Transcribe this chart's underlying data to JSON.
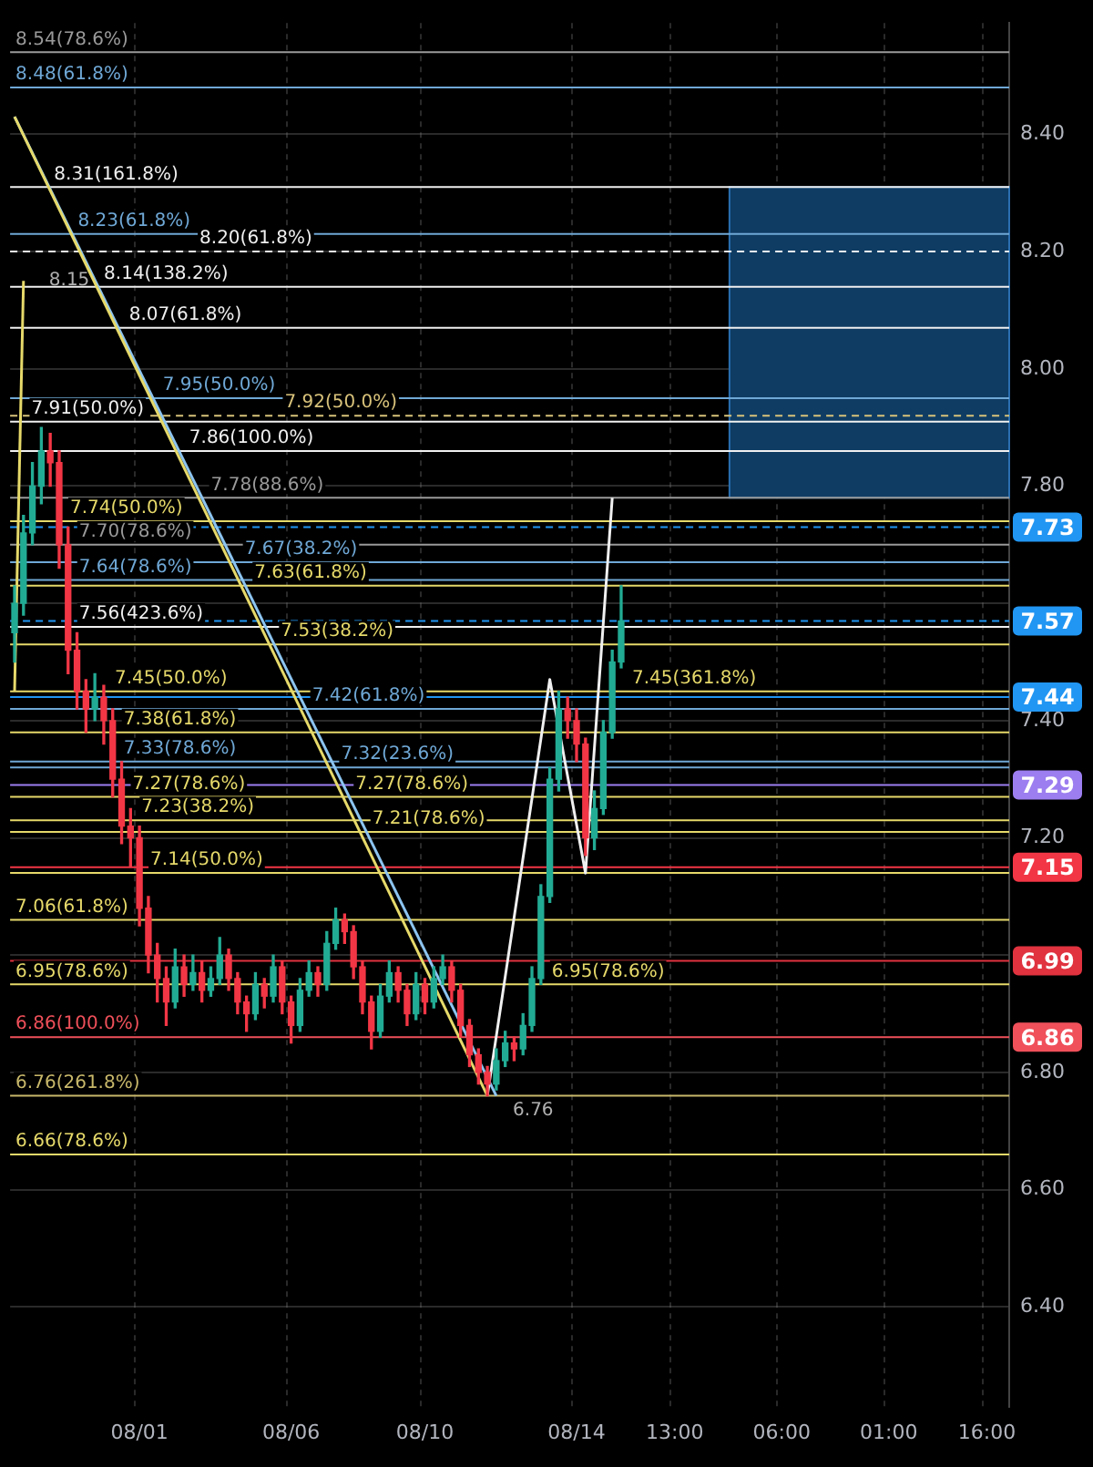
{
  "chart_data": {
    "type": "candlestick",
    "categories": [
      null,
      null,
      null,
      null,
      null,
      null,
      null,
      null,
      null,
      null,
      null,
      null,
      null,
      null,
      "08/01",
      null,
      null,
      null,
      null,
      null,
      null,
      null,
      null,
      null,
      null,
      null,
      null,
      null,
      null,
      null,
      null,
      "08/06",
      null,
      null,
      null,
      null,
      null,
      null,
      null,
      null,
      null,
      null,
      null,
      null,
      null,
      null,
      "08/10",
      null,
      null,
      null,
      null,
      null,
      null,
      null,
      null,
      null,
      null,
      null,
      null,
      null,
      null,
      null,
      null,
      "08/14",
      null,
      null,
      null,
      null,
      null,
      null,
      null,
      null,
      null,
      null,
      "13:00",
      null,
      null,
      null,
      null,
      null,
      null,
      null,
      null,
      null,
      null,
      null,
      "06:00",
      null,
      null,
      null,
      null,
      null,
      null,
      null,
      null,
      null,
      null,
      null,
      "01:00",
      null,
      null,
      null,
      null,
      null,
      null,
      null,
      null,
      null,
      null,
      "16:00",
      null,
      null
    ],
    "ohlc": [
      [
        7.55,
        7.63,
        7.5,
        7.6
      ],
      [
        7.6,
        7.75,
        7.58,
        7.72
      ],
      [
        7.72,
        7.84,
        7.7,
        7.8
      ],
      [
        7.8,
        7.9,
        7.77,
        7.86
      ],
      [
        7.86,
        7.89,
        7.8,
        7.84
      ],
      [
        7.84,
        7.86,
        7.66,
        7.7
      ],
      [
        7.7,
        7.73,
        7.48,
        7.52
      ],
      [
        7.52,
        7.55,
        7.42,
        7.45
      ],
      [
        7.45,
        7.47,
        7.38,
        7.42
      ],
      [
        7.42,
        7.48,
        7.4,
        7.44
      ],
      [
        7.44,
        7.46,
        7.36,
        7.4
      ],
      [
        7.4,
        7.42,
        7.27,
        7.3
      ],
      [
        7.3,
        7.33,
        7.19,
        7.22
      ],
      [
        7.22,
        7.25,
        7.15,
        7.2
      ],
      [
        7.2,
        7.22,
        7.05,
        7.08
      ],
      [
        7.08,
        7.1,
        6.97,
        7.0
      ],
      [
        7.0,
        7.02,
        6.92,
        6.96
      ],
      [
        6.96,
        6.98,
        6.88,
        6.92
      ],
      [
        6.92,
        7.01,
        6.91,
        6.98
      ],
      [
        6.98,
        7.0,
        6.93,
        6.95
      ],
      [
        6.95,
        7.0,
        6.94,
        6.97
      ],
      [
        6.97,
        6.99,
        6.92,
        6.94
      ],
      [
        6.94,
        6.98,
        6.93,
        6.96
      ],
      [
        6.96,
        7.03,
        6.95,
        7.0
      ],
      [
        7.0,
        7.01,
        6.94,
        6.96
      ],
      [
        6.96,
        6.97,
        6.9,
        6.92
      ],
      [
        6.92,
        6.93,
        6.87,
        6.9
      ],
      [
        6.9,
        6.97,
        6.89,
        6.95
      ],
      [
        6.95,
        6.96,
        6.91,
        6.93
      ],
      [
        6.93,
        7.0,
        6.92,
        6.98
      ],
      [
        6.98,
        6.99,
        6.9,
        6.92
      ],
      [
        6.92,
        6.93,
        6.85,
        6.88
      ],
      [
        6.88,
        6.96,
        6.87,
        6.94
      ],
      [
        6.94,
        6.99,
        6.93,
        6.97
      ],
      [
        6.97,
        6.98,
        6.93,
        6.95
      ],
      [
        6.95,
        7.04,
        6.94,
        7.02
      ],
      [
        7.02,
        7.08,
        7.01,
        7.06
      ],
      [
        7.06,
        7.07,
        7.02,
        7.04
      ],
      [
        7.04,
        7.05,
        6.96,
        6.98
      ],
      [
        6.98,
        6.99,
        6.9,
        6.92
      ],
      [
        6.92,
        6.93,
        6.84,
        6.87
      ],
      [
        6.87,
        6.95,
        6.86,
        6.93
      ],
      [
        6.93,
        6.99,
        6.92,
        6.97
      ],
      [
        6.97,
        6.98,
        6.92,
        6.94
      ],
      [
        6.94,
        6.95,
        6.88,
        6.9
      ],
      [
        6.9,
        6.97,
        6.89,
        6.95
      ],
      [
        6.95,
        6.96,
        6.9,
        6.92
      ],
      [
        6.92,
        6.98,
        6.91,
        6.96
      ],
      [
        6.96,
        7.0,
        6.95,
        6.98
      ],
      [
        6.98,
        6.99,
        6.92,
        6.94
      ],
      [
        6.94,
        6.95,
        6.86,
        6.88
      ],
      [
        6.88,
        6.89,
        6.81,
        6.83
      ],
      [
        6.83,
        6.84,
        6.78,
        6.8
      ],
      [
        6.8,
        6.81,
        6.76,
        6.78
      ],
      [
        6.78,
        6.84,
        6.77,
        6.82
      ],
      [
        6.82,
        6.87,
        6.81,
        6.85
      ],
      [
        6.85,
        6.86,
        6.82,
        6.84
      ],
      [
        6.84,
        6.9,
        6.83,
        6.88
      ],
      [
        6.88,
        6.98,
        6.87,
        6.96
      ],
      [
        6.96,
        7.12,
        6.95,
        7.1
      ],
      [
        7.1,
        7.32,
        7.09,
        7.3
      ],
      [
        7.3,
        7.45,
        7.28,
        7.42
      ],
      [
        7.42,
        7.44,
        7.37,
        7.4
      ],
      [
        7.4,
        7.42,
        7.33,
        7.36
      ],
      [
        7.36,
        7.37,
        7.17,
        7.2
      ],
      [
        7.2,
        7.28,
        7.18,
        7.25
      ],
      [
        7.25,
        7.4,
        7.24,
        7.38
      ],
      [
        7.38,
        7.52,
        7.37,
        7.5
      ],
      [
        7.5,
        7.63,
        7.49,
        7.57
      ],
      null,
      null,
      null,
      null,
      null,
      null,
      null,
      null,
      null,
      null,
      null,
      null,
      null,
      null,
      null,
      null,
      null,
      null,
      null,
      null,
      null,
      null,
      null,
      null,
      null,
      null,
      null,
      null,
      null,
      null,
      null,
      null,
      null,
      null,
      null,
      null,
      null,
      null,
      null,
      null,
      null,
      null,
      null
    ],
    "series": [
      {
        "type": "line",
        "color": "#e6d96a",
        "values": [
          7.45,
          8.15,
          null,
          null,
          null,
          null,
          null,
          null,
          null,
          null,
          null,
          null,
          null,
          null,
          null,
          null,
          null,
          null,
          null,
          null,
          null,
          null,
          null,
          null,
          null,
          null,
          null,
          null,
          null,
          null,
          null,
          null,
          null,
          null,
          null,
          null,
          null,
          null,
          null,
          null,
          null,
          null,
          null,
          null,
          null,
          null,
          null,
          null,
          null,
          null,
          null,
          null,
          null,
          null,
          null,
          null,
          null,
          null,
          null,
          null,
          null,
          null,
          null,
          null,
          null,
          null,
          null,
          null,
          null,
          null,
          null,
          null,
          null,
          null,
          null,
          null,
          null,
          null,
          null,
          null,
          null,
          null,
          null,
          null,
          null,
          null,
          null,
          null,
          null,
          null,
          null,
          null,
          null,
          null,
          null,
          null,
          null,
          null,
          null,
          null,
          null,
          null,
          null,
          null,
          null,
          null,
          null,
          null,
          null,
          null,
          null,
          null
        ]
      },
      {
        "type": "line",
        "color": "#e6d96a",
        "values": [
          8.43,
          null,
          null,
          null,
          null,
          null,
          null,
          null,
          null,
          null,
          null,
          null,
          null,
          null,
          null,
          null,
          null,
          null,
          null,
          null,
          null,
          null,
          null,
          null,
          null,
          null,
          null,
          null,
          null,
          null,
          null,
          null,
          null,
          null,
          null,
          null,
          null,
          null,
          null,
          null,
          null,
          null,
          null,
          null,
          null,
          null,
          null,
          null,
          null,
          null,
          null,
          null,
          null,
          6.76,
          null,
          null,
          null,
          null,
          null,
          null,
          null,
          null,
          null,
          null,
          null,
          null,
          null,
          null,
          null,
          null,
          null,
          null,
          null,
          null,
          null,
          null,
          null,
          null,
          null,
          null,
          null,
          null,
          null,
          null,
          null,
          null,
          null,
          null,
          null,
          null,
          null,
          null,
          null,
          null,
          null,
          null,
          null,
          null,
          null,
          null,
          null,
          null,
          null,
          null,
          null,
          null,
          null,
          null,
          null,
          null,
          null,
          null
        ]
      },
      {
        "type": "line",
        "color": "#8cc4f0",
        "values": [
          8.43,
          null,
          null,
          null,
          null,
          null,
          null,
          null,
          null,
          null,
          null,
          null,
          null,
          null,
          null,
          null,
          null,
          null,
          null,
          null,
          null,
          null,
          null,
          null,
          null,
          null,
          null,
          null,
          null,
          null,
          null,
          null,
          null,
          null,
          null,
          null,
          null,
          null,
          null,
          null,
          null,
          null,
          null,
          null,
          null,
          null,
          null,
          null,
          null,
          null,
          null,
          null,
          null,
          null,
          6.76,
          null,
          null,
          null,
          null,
          null,
          null,
          null,
          null,
          null,
          null,
          null,
          null,
          null,
          null,
          null,
          null,
          null,
          null,
          null,
          null,
          null,
          null,
          null,
          null,
          null,
          null,
          null,
          null,
          null,
          null,
          null,
          null,
          null,
          null,
          null,
          null,
          null,
          null,
          null,
          null,
          null,
          null,
          null,
          null,
          null,
          null,
          null,
          null,
          null,
          null,
          null,
          null,
          null,
          null,
          null,
          null,
          null
        ]
      },
      {
        "type": "line",
        "color": "#f0f0f0",
        "values": [
          null,
          null,
          null,
          null,
          null,
          null,
          null,
          null,
          null,
          null,
          null,
          null,
          null,
          null,
          null,
          null,
          null,
          null,
          null,
          null,
          null,
          null,
          null,
          null,
          null,
          null,
          null,
          null,
          null,
          null,
          null,
          null,
          null,
          null,
          null,
          null,
          null,
          null,
          null,
          null,
          null,
          null,
          null,
          null,
          null,
          null,
          null,
          null,
          null,
          null,
          null,
          null,
          null,
          6.76,
          null,
          null,
          null,
          null,
          null,
          null,
          7.47,
          null,
          null,
          null,
          7.14,
          null,
          null,
          7.78,
          null,
          null,
          null,
          null,
          null,
          null,
          null,
          null,
          null,
          null,
          null,
          null,
          null,
          null,
          null,
          null,
          null,
          null,
          null,
          null,
          null,
          null,
          null,
          null,
          null,
          null,
          null,
          null,
          null,
          null,
          null,
          null,
          null,
          null,
          null,
          null,
          null,
          null,
          null,
          null,
          null,
          null,
          null,
          null
        ]
      }
    ],
    "ylim": [
      6.23,
      8.59
    ],
    "yticks": [
      {
        "value": 6.4,
        "label": "6.40"
      },
      {
        "value": 6.6,
        "label": "6.60"
      },
      {
        "value": 6.8,
        "label": "6.80"
      },
      {
        "value": 7.0,
        "label": null
      },
      {
        "value": 7.2,
        "label": "7.20"
      },
      {
        "value": 7.4,
        "label": "7.40"
      },
      {
        "value": 7.6,
        "label": null
      },
      {
        "value": 7.8,
        "label": "7.80"
      },
      {
        "value": 8.0,
        "label": "8.00"
      },
      {
        "value": 8.2,
        "label": "8.20"
      },
      {
        "value": 8.4,
        "label": "8.40"
      }
    ],
    "grid": true,
    "bands": [
      {
        "axis": "y",
        "from": 7.78,
        "to": 8.31,
        "color": "#0f3c63"
      }
    ],
    "ref_lines": [
      {
        "axis": "y",
        "value": 8.54,
        "label": "8.54(78.6%)",
        "color": "#9a9a9a"
      },
      {
        "axis": "y",
        "value": 8.48,
        "label": "8.48(61.8%)",
        "color": "#6fa8d6"
      },
      {
        "axis": "y",
        "value": 8.31,
        "label": "8.31(161.8%)",
        "color": "#f0f0f0"
      },
      {
        "axis": "y",
        "value": 8.23,
        "label": "8.23(61.8%)",
        "color": "#6fa8d6"
      },
      {
        "axis": "y",
        "value": 8.2,
        "label": "8.20(61.8%)",
        "color": "#f0f0f0",
        "line_style": "dashed"
      },
      {
        "axis": "y",
        "value": 8.14,
        "label": "8.14(138.2%)",
        "color": "#f0f0f0"
      },
      {
        "axis": "y",
        "value": 8.07,
        "label": "8.07(61.8%)",
        "color": "#f0f0f0"
      },
      {
        "axis": "y",
        "value": 7.95,
        "label": "7.95(50.0%)",
        "color": "#6fa8d6"
      },
      {
        "axis": "y",
        "value": 7.92,
        "label": "7.92(50.0%)",
        "color": "#d8c27a",
        "line_style": "dashed"
      },
      {
        "axis": "y",
        "value": 7.91,
        "label": "7.91(50.0%)",
        "color": "#f0f0f0"
      },
      {
        "axis": "y",
        "value": 7.86,
        "label": "7.86(100.0%)",
        "color": "#f0f0f0"
      },
      {
        "axis": "y",
        "value": 7.78,
        "label": "7.78(88.6%)",
        "color": "#9a9a9a"
      },
      {
        "axis": "y",
        "value": 7.74,
        "label": "7.74(50.0%)",
        "color": "#e6d96a"
      },
      {
        "axis": "y",
        "value": 7.73,
        "label": "7.73",
        "color": "#2196f3",
        "line_style": "dashed"
      },
      {
        "axis": "y",
        "value": 7.7,
        "label": "7.70(78.6%)",
        "color": "#9a9a9a"
      },
      {
        "axis": "y",
        "value": 7.67,
        "label": "7.67(38.2%)",
        "color": "#6fa8d6"
      },
      {
        "axis": "y",
        "value": 7.64,
        "label": "7.64(78.6%)",
        "color": "#6fa8d6"
      },
      {
        "axis": "y",
        "value": 7.63,
        "label": "7.63(61.8%)",
        "color": "#e6d96a"
      },
      {
        "axis": "y",
        "value": 7.57,
        "label": "7.57",
        "color": "#2196f3",
        "line_style": "dashed"
      },
      {
        "axis": "y",
        "value": 7.56,
        "label": "7.56(423.6%)",
        "color": "#f0f0f0"
      },
      {
        "axis": "y",
        "value": 7.53,
        "label": "7.53(38.2%)",
        "color": "#e6d96a"
      },
      {
        "axis": "y",
        "value": 7.45,
        "label": "7.45(50.0%)",
        "color": "#e6d96a"
      },
      {
        "axis": "y",
        "value": 7.44,
        "label": "7.44",
        "color": "#2196f3"
      },
      {
        "axis": "y",
        "value": 7.42,
        "label": "7.42(61.8%)",
        "color": "#6fa8d6"
      },
      {
        "axis": "y",
        "value": 7.38,
        "label": "7.38(61.8%)",
        "color": "#e6d96a"
      },
      {
        "axis": "y",
        "value": 7.33,
        "label": "7.33(78.6%)",
        "color": "#6fa8d6"
      },
      {
        "axis": "y",
        "value": 7.32,
        "label": "7.32(23.6%)",
        "color": "#6fa8d6"
      },
      {
        "axis": "y",
        "value": 7.29,
        "label": "7.29",
        "color": "#9c7ef0"
      },
      {
        "axis": "y",
        "value": 7.27,
        "label": "7.27(78.6%)",
        "color": "#e6d96a"
      },
      {
        "axis": "y",
        "value": 7.23,
        "label": "7.23(38.2%)",
        "color": "#e6d96a"
      },
      {
        "axis": "y",
        "value": 7.21,
        "label": "7.21(78.6%)",
        "color": "#e6d96a"
      },
      {
        "axis": "y",
        "value": 7.15,
        "label": "7.15",
        "color": "#f23645"
      },
      {
        "axis": "y",
        "value": 7.14,
        "label": "7.14(50.0%)",
        "color": "#e6d96a"
      },
      {
        "axis": "y",
        "value": 7.06,
        "label": "7.06(61.8%)",
        "color": "#e6d96a"
      },
      {
        "axis": "y",
        "value": 6.99,
        "label": "6.99",
        "color": "#e0323f"
      },
      {
        "axis": "y",
        "value": 6.95,
        "label": "6.95(78.6%)",
        "color": "#e6d96a"
      },
      {
        "axis": "y",
        "value": 6.86,
        "label": "6.86(100.0%)",
        "color": "#f0505a"
      },
      {
        "axis": "y",
        "value": 6.76,
        "label": "6.76(261.8%)",
        "color": "#c8b86a"
      },
      {
        "axis": "y",
        "value": 6.66,
        "label": "6.66(78.6%)",
        "color": "#e6d96a"
      }
    ],
    "annotations": [
      {
        "text": "8.15",
        "y": 8.15
      },
      "6.76",
      {
        "text": "7.45(361.8%)",
        "y": 7.45
      },
      {
        "text": "7.27(78.6%)",
        "y": 7.27
      },
      {
        "text": "6.95(78.6%)",
        "y": 6.95
      },
      {
        "text": "6.86",
        "y": 6.86
      }
    ]
  }
}
